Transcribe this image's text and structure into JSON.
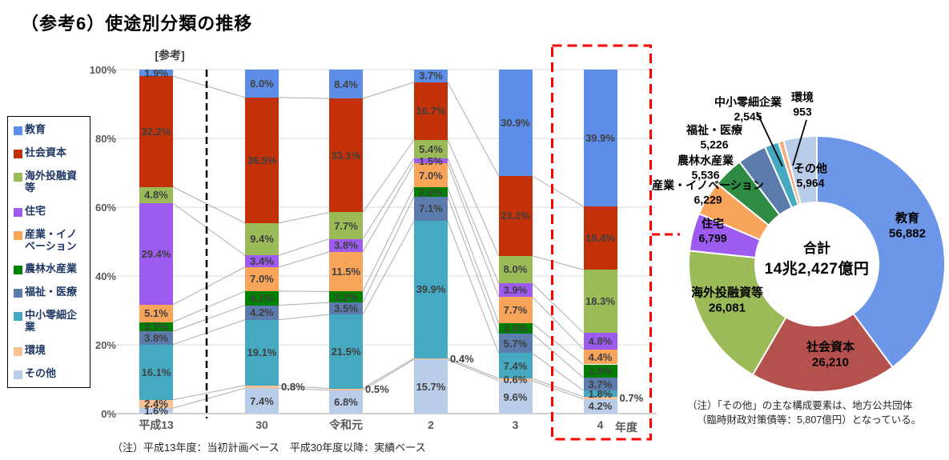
{
  "title": "（参考6）使途別分類の推移",
  "reference_label": "[参考]",
  "axis": {
    "y_ticks": [
      "0%",
      "20%",
      "40%",
      "60%",
      "80%",
      "100%"
    ],
    "x_labels": [
      "平成13",
      "30",
      "令和元",
      "2",
      "3",
      "4"
    ],
    "x_unit_label": "年度"
  },
  "legend": {
    "items": [
      "教育",
      "社会資本",
      "海外投融資等",
      "住宅",
      "産業・イノベーション",
      "農林水産業",
      "福祉・医療",
      "中小零細企業",
      "環境",
      "その他"
    ]
  },
  "notes": {
    "bottom_left": "（注）平成13年度：当初計画ベース　平成30年度以降：実績ベース",
    "bottom_right_line1": "（注）「その他」の主な構成要素は、地方公共団体",
    "bottom_right_line2": "（臨時財政対策債等：5,807億円）となっている。"
  },
  "colors": {
    "highlight_box": "#FF0000",
    "grid": "#D9D9D9",
    "series_line": "#ADADAD",
    "axis_line": "#A6A6A6",
    "divider_line": "#000000"
  },
  "chart_data": [
    {
      "type": "bar",
      "stacked": true,
      "unit": "%",
      "ylim": [
        0,
        100
      ],
      "categories": [
        "平成13",
        "30",
        "令和元",
        "2",
        "3",
        "4"
      ],
      "series": [
        {
          "name": "教育",
          "color": "#5C8DE8",
          "values": [
            1.9,
            8.0,
            8.4,
            3.7,
            30.9,
            39.9
          ]
        },
        {
          "name": "社会資本",
          "color": "#C23108",
          "values": [
            32.2,
            36.5,
            33.1,
            16.7,
            23.2,
            18.4
          ]
        },
        {
          "name": "海外投融資等",
          "color": "#9BBB59",
          "values": [
            4.8,
            9.4,
            7.7,
            5.4,
            8.0,
            18.3
          ]
        },
        {
          "name": "住宅",
          "color": "#9D5BF0",
          "values": [
            29.4,
            3.4,
            3.8,
            1.5,
            3.9,
            4.8
          ]
        },
        {
          "name": "産業・イノベーション",
          "color": "#F9A45B",
          "values": [
            5.1,
            7.0,
            11.5,
            7.0,
            7.7,
            4.4
          ]
        },
        {
          "name": "農林水産業",
          "color": "#008000",
          "values": [
            2.7,
            4.1,
            3.2,
            2.6,
            3.0,
            3.9
          ]
        },
        {
          "name": "福祉・医療",
          "color": "#5C7CAD",
          "values": [
            3.8,
            4.2,
            3.5,
            7.1,
            5.7,
            3.7
          ]
        },
        {
          "name": "中小零細企業",
          "color": "#45A9C2",
          "values": [
            16.1,
            19.1,
            21.5,
            39.9,
            7.4,
            1.8
          ]
        },
        {
          "name": "環境",
          "color": "#F9C292",
          "values": [
            2.4,
            0.8,
            0.5,
            0.4,
            0.6,
            0.7
          ]
        },
        {
          "name": "その他",
          "color": "#B9CCE8",
          "values": [
            1.6,
            7.4,
            6.8,
            15.7,
            9.6,
            4.2
          ]
        }
      ],
      "reference_category_index": 0,
      "highlighted_category_index": 5,
      "outside_value_labels": {
        "series_index": 8,
        "category_indices": [
          1,
          2,
          3,
          5
        ]
      }
    },
    {
      "type": "donut",
      "center_title": "合計",
      "center_value": "14兆2,427億円",
      "slices": [
        {
          "name": "教育",
          "value": 56882,
          "display": "56,882",
          "color": "#6C96E8"
        },
        {
          "name": "社会資本",
          "value": 26210,
          "display": "26,210",
          "color": "#B5514C"
        },
        {
          "name": "海外投融資等",
          "value": 26081,
          "display": "26,081",
          "color": "#9BBB59"
        },
        {
          "name": "住宅",
          "value": 6799,
          "display": "6,799",
          "color": "#9D5BF0"
        },
        {
          "name": "産業・イノベーション",
          "value": 6229,
          "display": "6,229",
          "color": "#F9A45B"
        },
        {
          "name": "農林水産業",
          "value": 5536,
          "display": "5,536",
          "color": "#2E8B44"
        },
        {
          "name": "福祉・医療",
          "value": 5226,
          "display": "5,226",
          "color": "#5C7CAD"
        },
        {
          "name": "中小零細企業",
          "value": 2545,
          "display": "2,545",
          "color": "#45A9C2"
        },
        {
          "name": "環境",
          "value": 953,
          "display": "953",
          "color": "#F2AE7E"
        },
        {
          "name": "その他",
          "value": 5964,
          "display": "5,964",
          "color": "#B9CCE8"
        }
      ]
    }
  ]
}
